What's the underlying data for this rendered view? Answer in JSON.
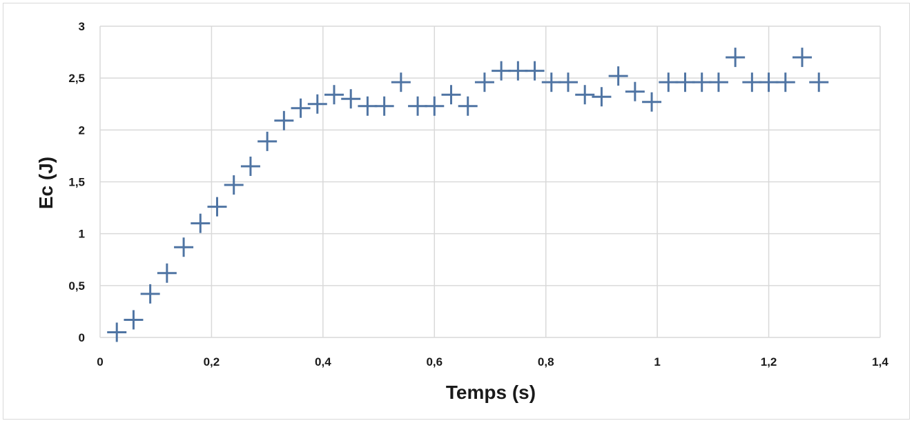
{
  "chart_data": {
    "type": "scatter",
    "title": "",
    "xlabel": "Temps (s)",
    "ylabel": "Ec (J)",
    "xlim": [
      0,
      1.4
    ],
    "ylim": [
      0,
      3
    ],
    "grid": true,
    "legend": "none",
    "marker": "plus",
    "marker_color": "#4f74a3",
    "x_ticks": [
      {
        "value": 0,
        "label": "0"
      },
      {
        "value": 0.2,
        "label": "0,2"
      },
      {
        "value": 0.4,
        "label": "0,4"
      },
      {
        "value": 0.6,
        "label": "0,6"
      },
      {
        "value": 0.8,
        "label": "0,8"
      },
      {
        "value": 1,
        "label": "1"
      },
      {
        "value": 1.2,
        "label": "1,2"
      },
      {
        "value": 1.4,
        "label": "1,4"
      }
    ],
    "y_ticks": [
      {
        "value": 0,
        "label": "0"
      },
      {
        "value": 0.5,
        "label": "0,5"
      },
      {
        "value": 1,
        "label": "1"
      },
      {
        "value": 1.5,
        "label": "1,5"
      },
      {
        "value": 2,
        "label": "2"
      },
      {
        "value": 2.5,
        "label": "2,5"
      },
      {
        "value": 3,
        "label": "3"
      }
    ],
    "series": [
      {
        "points": [
          [
            0.03,
            0.05
          ],
          [
            0.06,
            0.17
          ],
          [
            0.09,
            0.42
          ],
          [
            0.12,
            0.62
          ],
          [
            0.15,
            0.87
          ],
          [
            0.18,
            1.1
          ],
          [
            0.21,
            1.26
          ],
          [
            0.24,
            1.47
          ],
          [
            0.27,
            1.65
          ],
          [
            0.3,
            1.89
          ],
          [
            0.33,
            2.09
          ],
          [
            0.36,
            2.21
          ],
          [
            0.39,
            2.25
          ],
          [
            0.42,
            2.34
          ],
          [
            0.45,
            2.3
          ],
          [
            0.48,
            2.23
          ],
          [
            0.51,
            2.23
          ],
          [
            0.54,
            2.46
          ],
          [
            0.57,
            2.23
          ],
          [
            0.6,
            2.23
          ],
          [
            0.63,
            2.34
          ],
          [
            0.66,
            2.23
          ],
          [
            0.69,
            2.46
          ],
          [
            0.72,
            2.57
          ],
          [
            0.75,
            2.57
          ],
          [
            0.78,
            2.57
          ],
          [
            0.81,
            2.46
          ],
          [
            0.84,
            2.46
          ],
          [
            0.87,
            2.34
          ],
          [
            0.9,
            2.32
          ],
          [
            0.93,
            2.52
          ],
          [
            0.96,
            2.37
          ],
          [
            0.99,
            2.27
          ],
          [
            1.02,
            2.46
          ],
          [
            1.05,
            2.46
          ],
          [
            1.08,
            2.46
          ],
          [
            1.11,
            2.46
          ],
          [
            1.14,
            2.7
          ],
          [
            1.17,
            2.46
          ],
          [
            1.2,
            2.46
          ],
          [
            1.23,
            2.46
          ],
          [
            1.26,
            2.7
          ],
          [
            1.29,
            2.46
          ]
        ]
      }
    ]
  }
}
